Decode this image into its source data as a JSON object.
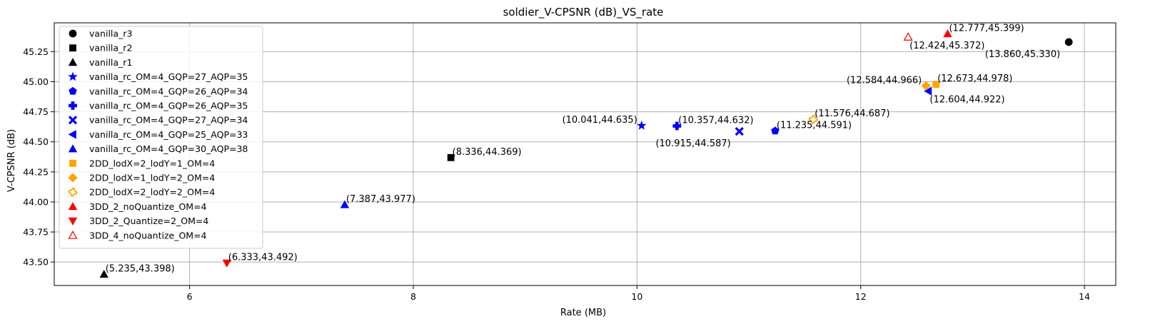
{
  "chart_data": {
    "type": "scatter",
    "title": "soldier_V-CPSNR (dB)_VS_rate",
    "xlabel": "Rate (MB)",
    "ylabel": "V-CPSNR (dB)",
    "xlim": [
      4.79,
      14.28
    ],
    "ylim": [
      43.305,
      45.49
    ],
    "xticks": [
      6,
      8,
      10,
      12,
      14
    ],
    "yticks": [
      43.5,
      43.75,
      44.0,
      44.25,
      44.5,
      44.75,
      45.0,
      45.25
    ],
    "xtick_labels": [
      "6",
      "8",
      "10",
      "12",
      "14"
    ],
    "ytick_labels": [
      "43.50",
      "43.75",
      "44.00",
      "44.25",
      "44.50",
      "44.75",
      "45.00",
      "45.25"
    ],
    "grid": true,
    "legend_position": "upper-left",
    "series": [
      {
        "name": "vanilla_r3",
        "marker": "circle",
        "color": "#000000",
        "filled": true,
        "points": [
          {
            "x": 13.86,
            "y": 45.33,
            "label": "(13.860,45.330)",
            "label_pos": "below-left"
          }
        ]
      },
      {
        "name": "vanilla_r2",
        "marker": "square",
        "color": "#000000",
        "filled": true,
        "points": [
          {
            "x": 8.336,
            "y": 44.369,
            "label": "(8.336,44.369)",
            "label_pos": "right"
          }
        ]
      },
      {
        "name": "vanilla_r1",
        "marker": "triangle-up",
        "color": "#000000",
        "filled": true,
        "points": [
          {
            "x": 5.235,
            "y": 43.398,
            "label": "(5.235,43.398)",
            "label_pos": "right"
          }
        ]
      },
      {
        "name": "vanilla_rc_OM=4_GQP=27_AQP=35",
        "marker": "star",
        "color": "#0000ff",
        "filled": true,
        "points": [
          {
            "x": 10.041,
            "y": 44.635,
            "label": "(10.041,44.635)",
            "label_pos": "left"
          }
        ]
      },
      {
        "name": "vanilla_rc_OM=4_GQP=26_AQP=34",
        "marker": "pentagon",
        "color": "#0000ff",
        "filled": true,
        "points": [
          {
            "x": 11.235,
            "y": 44.591,
            "label": "(11.235,44.591)",
            "label_pos": "right"
          }
        ]
      },
      {
        "name": "vanilla_rc_OM=4_GQP=26_AQP=35",
        "marker": "plus",
        "color": "#0000ff",
        "filled": true,
        "points": [
          {
            "x": 10.357,
            "y": 44.632,
            "label": "(10.357,44.632)",
            "label_pos": "right"
          }
        ]
      },
      {
        "name": "vanilla_rc_OM=4_GQP=27_AQP=34",
        "marker": "x",
        "color": "#0000ff",
        "filled": true,
        "points": [
          {
            "x": 10.915,
            "y": 44.587,
            "label": "(10.915,44.587)",
            "label_pos": "below-left"
          }
        ]
      },
      {
        "name": "vanilla_rc_OM=4_GQP=25_AQP=33",
        "marker": "triangle-left",
        "color": "#0000ff",
        "filled": true,
        "points": [
          {
            "x": 12.604,
            "y": 44.922,
            "label": "(12.604,44.922)",
            "label_pos": "below-right"
          }
        ]
      },
      {
        "name": "vanilla_rc_OM=4_GQP=30_AQP=38",
        "marker": "triangle-up",
        "color": "#0000ff",
        "filled": true,
        "points": [
          {
            "x": 7.387,
            "y": 43.977,
            "label": "(7.387,43.977)",
            "label_pos": "right"
          }
        ]
      },
      {
        "name": "2DD_lodX=2_lodY=1_OM=4",
        "marker": "square",
        "color": "#ffa500",
        "filled": true,
        "points": [
          {
            "x": 12.673,
            "y": 44.978,
            "label": "(12.673,44.978)",
            "label_pos": "right"
          }
        ]
      },
      {
        "name": "2DD_lodX=1_lodY=2_OM=4",
        "marker": "diamond",
        "color": "#ffa500",
        "filled": true,
        "points": [
          {
            "x": 12.584,
            "y": 44.966,
            "label": "(12.584,44.966)",
            "label_pos": "left"
          }
        ]
      },
      {
        "name": "2DD_lodX=2_lodY=2_OM=4",
        "marker": "gear",
        "color": "#ffa500",
        "filled": false,
        "points": [
          {
            "x": 11.576,
            "y": 44.687,
            "label": "(11.576,44.687)",
            "label_pos": "right"
          }
        ]
      },
      {
        "name": "3DD_2_noQuantize_OM=4",
        "marker": "triangle-up",
        "color": "#ff0000",
        "filled": true,
        "points": [
          {
            "x": 12.777,
            "y": 45.399,
            "label": "(12.777,45.399)",
            "label_pos": "right"
          }
        ]
      },
      {
        "name": "3DD_2_Quantize=2_OM=4",
        "marker": "triangle-down",
        "color": "#ff0000",
        "filled": true,
        "points": [
          {
            "x": 6.333,
            "y": 43.492,
            "label": "(6.333,43.492)",
            "label_pos": "right"
          }
        ]
      },
      {
        "name": "3DD_4_noQuantize_OM=4",
        "marker": "triangle-up",
        "color": "#ff0000",
        "filled": false,
        "points": [
          {
            "x": 12.424,
            "y": 45.372,
            "label": "(12.424,45.372)",
            "label_pos": "below-right"
          }
        ]
      }
    ]
  }
}
